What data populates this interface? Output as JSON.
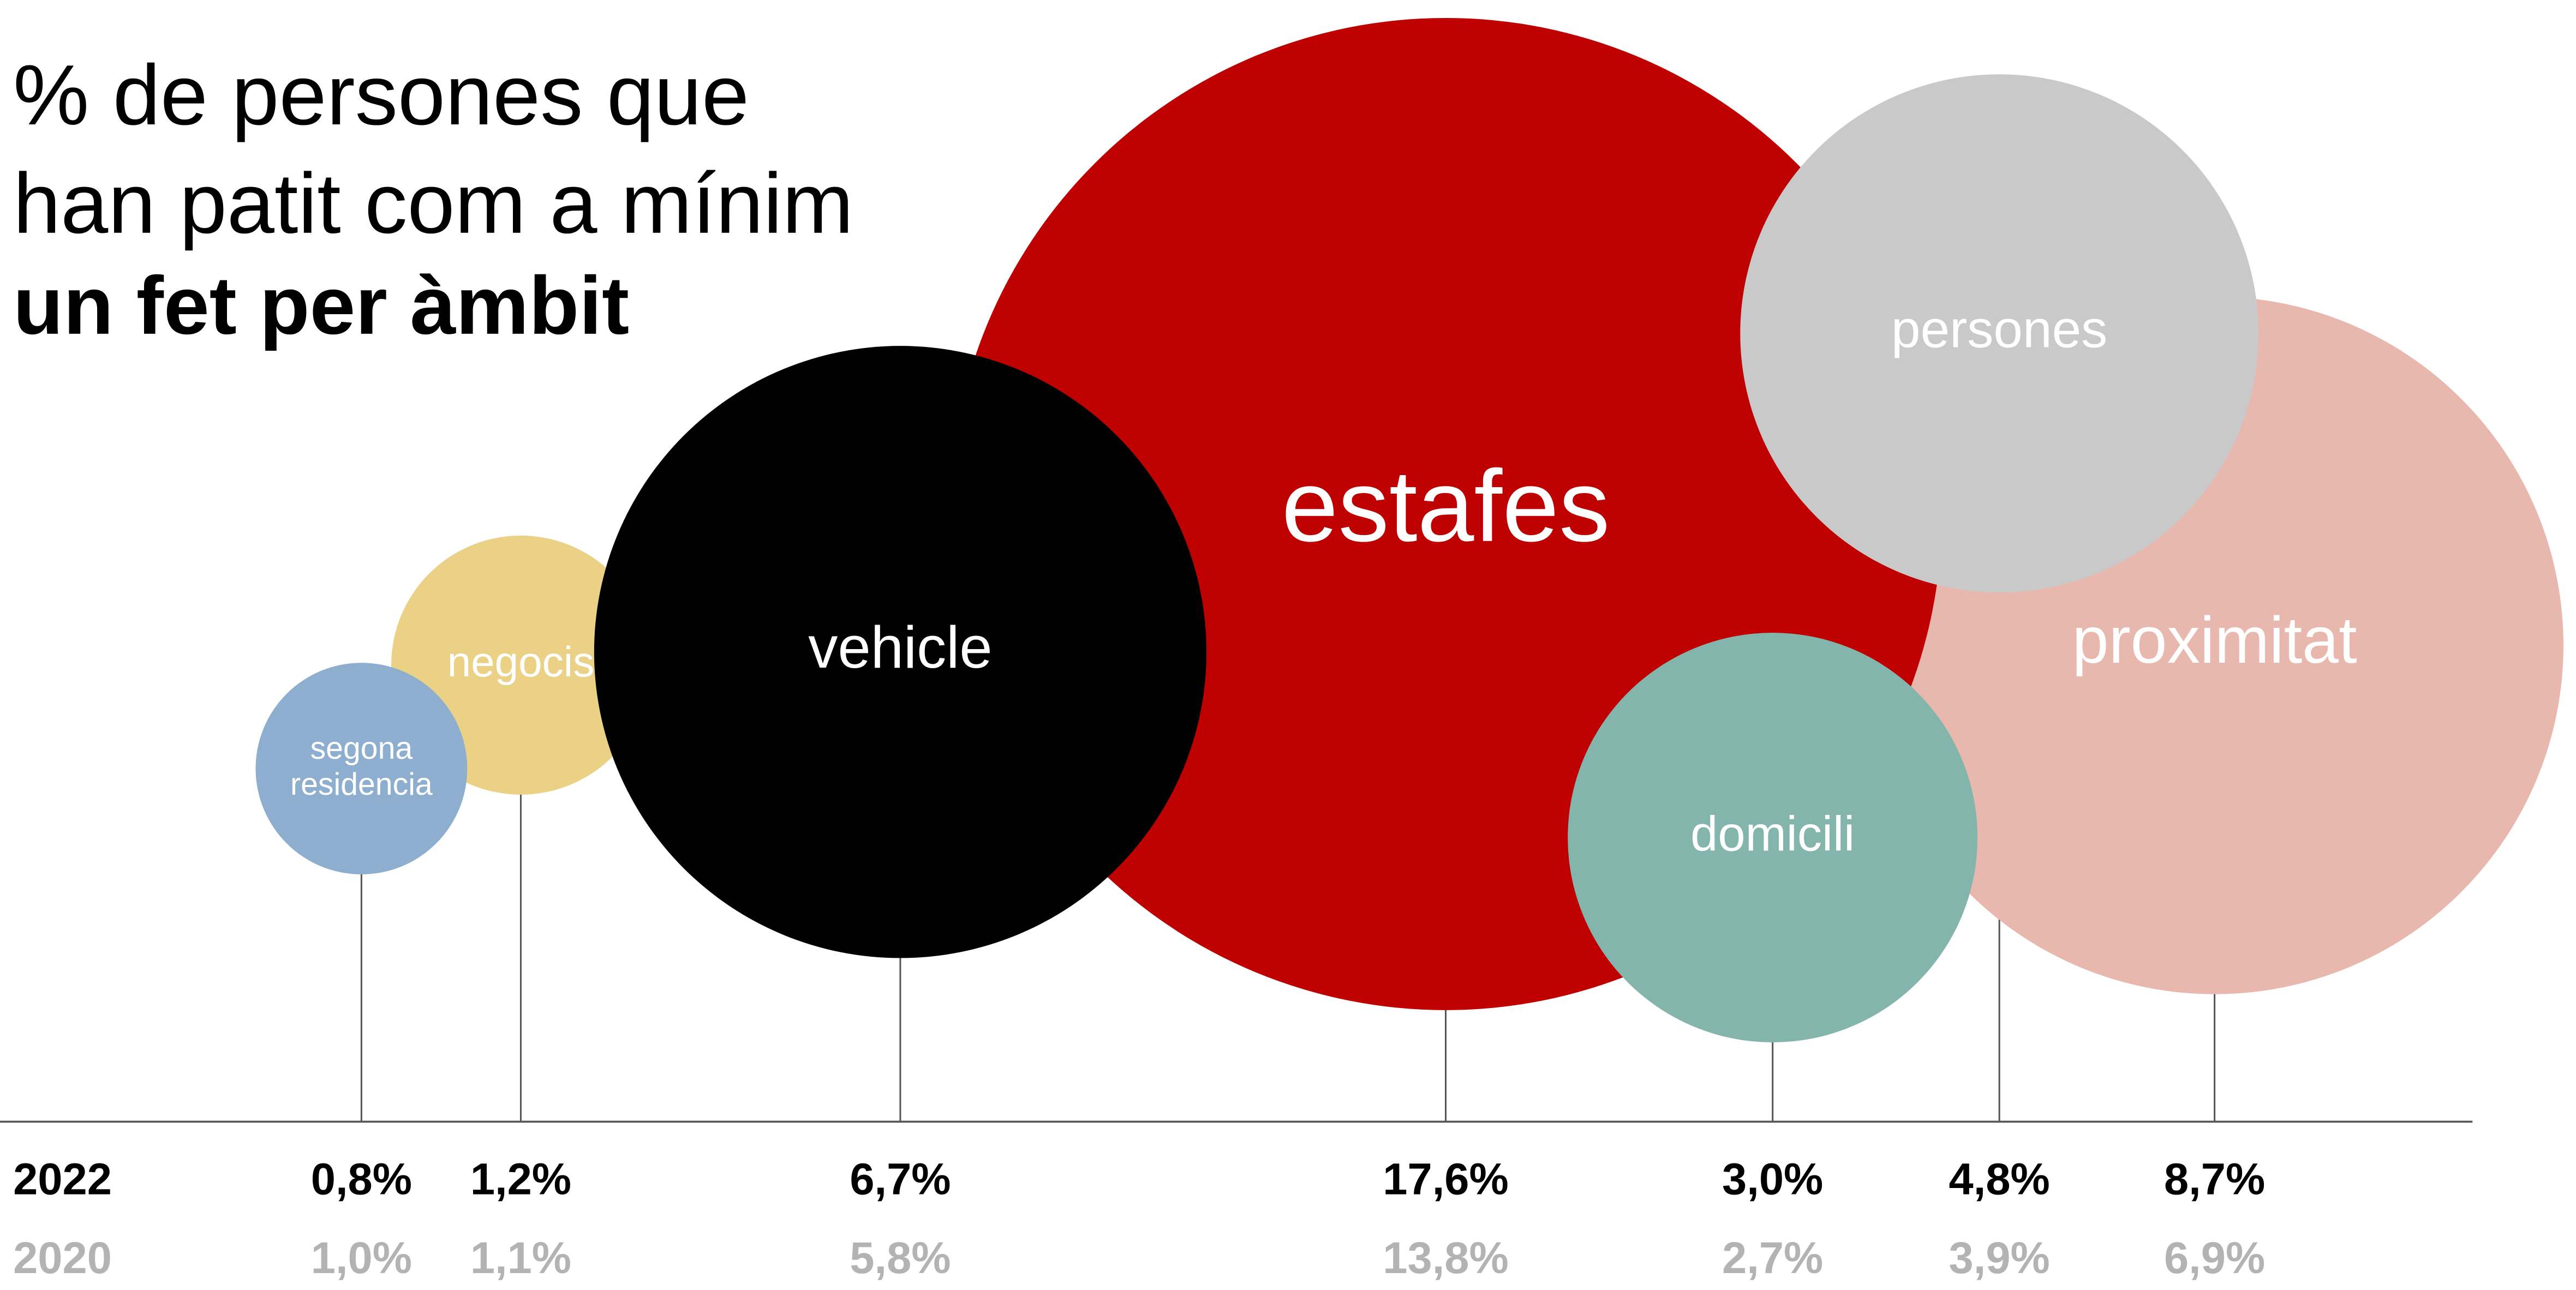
{
  "chart_data": {
    "type": "bubble",
    "title": [
      "% de persones que",
      "han patit com a mínim",
      "un fet per àmbit"
    ],
    "categories": [
      "segona residencia",
      "negocis",
      "vehicle",
      "estafes",
      "domicili",
      "persones",
      "proximitat"
    ],
    "colors": [
      "#8eaecf",
      "#ebd186",
      "#000000",
      "#bf0000",
      "#84b5ad",
      "#c9c9c9",
      "#e8b8ae"
    ],
    "series": [
      {
        "name": "2022",
        "color": "#000000",
        "values": [
          0.8,
          1.2,
          6.7,
          17.6,
          3.0,
          4.8,
          8.7
        ],
        "value_labels": [
          "0,8%",
          "1,2%",
          "6,7%",
          "17,6%",
          "3,0%",
          "4,8%",
          "8,7%"
        ]
      },
      {
        "name": "2020",
        "color": "#b3b3b3",
        "values": [
          1.0,
          1.1,
          5.8,
          13.8,
          2.7,
          3.9,
          6.9
        ],
        "value_labels": [
          "1,0%",
          "1,1%",
          "5,8%",
          "13,8%",
          "2,7%",
          "3,9%",
          "6,9%"
        ]
      }
    ]
  }
}
